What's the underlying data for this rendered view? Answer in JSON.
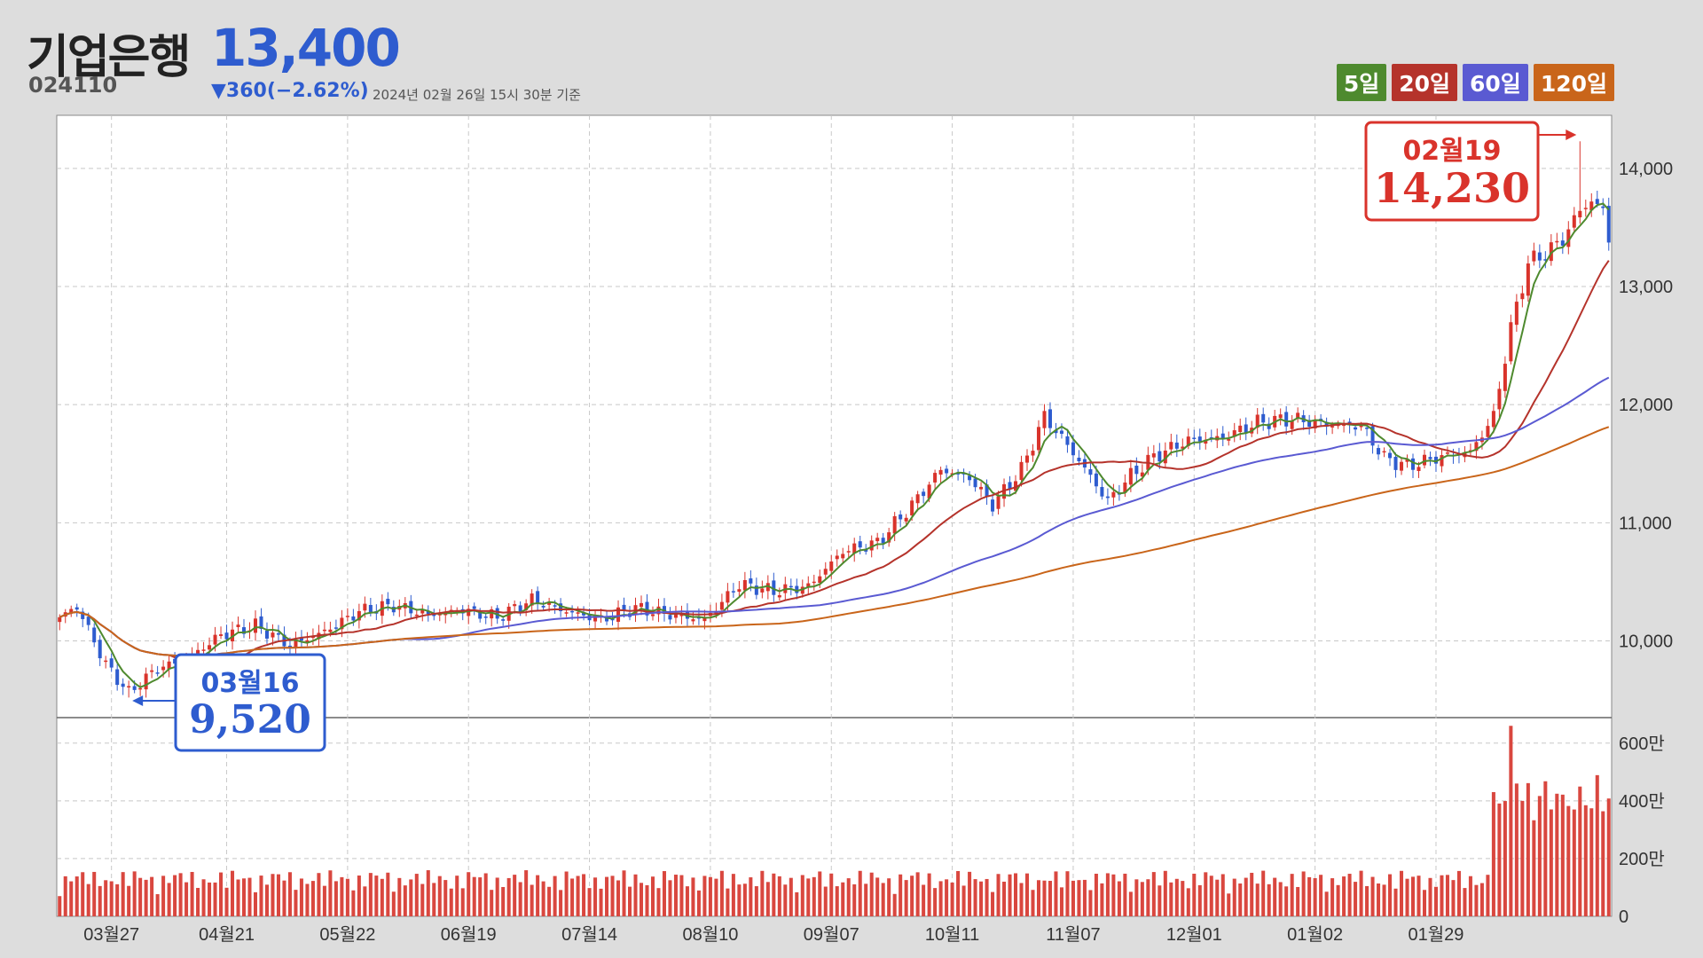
{
  "header": {
    "name": "기업은행",
    "price": "13,400",
    "code": "024110",
    "change": "▼360(−2.62%)",
    "timestamp": "2024년 02월 26일 15시 30분 기준"
  },
  "legend": [
    {
      "label": "5일",
      "color": "#4e8a2e"
    },
    {
      "label": "20일",
      "color": "#b5332b"
    },
    {
      "label": "60일",
      "color": "#5a5ad2"
    },
    {
      "label": "120일",
      "color": "#c9651a"
    }
  ],
  "colors": {
    "up": "#d9332b",
    "down": "#2e5ccf",
    "volume": "#d9473f",
    "grid": "#c8c8c8"
  },
  "annotations": {
    "high": {
      "date": "02월19",
      "value": "14,230"
    },
    "low": {
      "date": "03월16",
      "value": "9,520"
    }
  },
  "chart_data": {
    "type": "candlestick",
    "price_axis": {
      "min": 9350,
      "max": 14450,
      "ticks": [
        "10,000",
        "11,000",
        "12,000",
        "13,000",
        "14,000"
      ],
      "tick_values": [
        10000,
        11000,
        12000,
        13000,
        14000
      ]
    },
    "volume_axis": {
      "max": 6700000,
      "ticks": [
        "0",
        "200만",
        "400만",
        "600만"
      ],
      "tick_values": [
        0,
        2000000,
        4000000,
        6000000
      ]
    },
    "x_labels": [
      "03월27",
      "04월21",
      "05월22",
      "06월19",
      "07월14",
      "08월10",
      "09월07",
      "10월11",
      "11월07",
      "12월01",
      "01월02",
      "01월29"
    ],
    "anchors": [
      {
        "i": 0,
        "c": 10200
      },
      {
        "i": 3,
        "c": 10290
      },
      {
        "i": 8,
        "c": 9800
      },
      {
        "i": 12,
        "c": 9560
      },
      {
        "i": 17,
        "c": 9770
      },
      {
        "i": 22,
        "c": 9840
      },
      {
        "i": 28,
        "c": 10050
      },
      {
        "i": 34,
        "c": 10130
      },
      {
        "i": 40,
        "c": 9960
      },
      {
        "i": 46,
        "c": 10080
      },
      {
        "i": 52,
        "c": 10250
      },
      {
        "i": 58,
        "c": 10300
      },
      {
        "i": 64,
        "c": 10220
      },
      {
        "i": 70,
        "c": 10260
      },
      {
        "i": 76,
        "c": 10200
      },
      {
        "i": 82,
        "c": 10350
      },
      {
        "i": 88,
        "c": 10250
      },
      {
        "i": 94,
        "c": 10180
      },
      {
        "i": 100,
        "c": 10280
      },
      {
        "i": 106,
        "c": 10220
      },
      {
        "i": 112,
        "c": 10180
      },
      {
        "i": 118,
        "c": 10480
      },
      {
        "i": 124,
        "c": 10420
      },
      {
        "i": 130,
        "c": 10460
      },
      {
        "i": 136,
        "c": 10760
      },
      {
        "i": 142,
        "c": 10830
      },
      {
        "i": 148,
        "c": 11150
      },
      {
        "i": 153,
        "c": 11450
      },
      {
        "i": 158,
        "c": 11380
      },
      {
        "i": 162,
        "c": 11150
      },
      {
        "i": 167,
        "c": 11450
      },
      {
        "i": 171,
        "c": 11900
      },
      {
        "i": 174,
        "c": 11720
      },
      {
        "i": 178,
        "c": 11460
      },
      {
        "i": 182,
        "c": 11180
      },
      {
        "i": 186,
        "c": 11400
      },
      {
        "i": 190,
        "c": 11560
      },
      {
        "i": 196,
        "c": 11700
      },
      {
        "i": 202,
        "c": 11720
      },
      {
        "i": 208,
        "c": 11850
      },
      {
        "i": 214,
        "c": 11880
      },
      {
        "i": 220,
        "c": 11830
      },
      {
        "i": 226,
        "c": 11820
      },
      {
        "i": 230,
        "c": 11550
      },
      {
        "i": 234,
        "c": 11480
      },
      {
        "i": 240,
        "c": 11560
      },
      {
        "i": 245,
        "c": 11600
      },
      {
        "i": 249,
        "c": 11900
      },
      {
        "i": 252,
        "c": 12650
      },
      {
        "i": 255,
        "c": 13200
      },
      {
        "i": 258,
        "c": 13280
      },
      {
        "i": 261,
        "c": 13400
      },
      {
        "i": 264,
        "c": 13650
      },
      {
        "i": 266,
        "c": 13720
      },
      {
        "i": 268,
        "c": 13650
      },
      {
        "i": 269,
        "c": 13400
      }
    ],
    "ma_last": {
      "ma5": 13650,
      "ma20": 13220,
      "ma60": 12230,
      "ma120": 11810
    }
  }
}
